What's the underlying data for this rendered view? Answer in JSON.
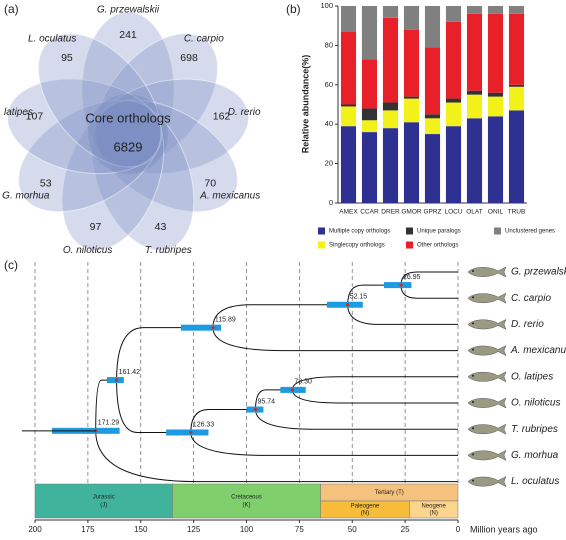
{
  "chart_data": [
    {
      "type": "venn",
      "panel": "(a)",
      "center_label": "Core orthologs",
      "center_value": 6829,
      "color": "#7d8fc3",
      "sets": [
        {
          "name": "G. przewalskii",
          "value": 241
        },
        {
          "name": "C. carpio",
          "value": 698
        },
        {
          "name": "D. rerio",
          "value": 162
        },
        {
          "name": "A. mexicanus",
          "value": 70
        },
        {
          "name": "T. rubripes",
          "value": 43
        },
        {
          "name": "O. niloticus",
          "value": 97
        },
        {
          "name": "G. morhua",
          "value": 53
        },
        {
          "name": "O. latipes",
          "value": 107
        },
        {
          "name": "L. oculatus",
          "value": 95
        }
      ]
    },
    {
      "type": "stacked_bar",
      "panel": "(b)",
      "y_label": "Relative abundance(%)",
      "categories": [
        "AMEX",
        "CCAR",
        "DRER",
        "GMOR",
        "GPRZ",
        "LOCU",
        "OLAT",
        "ONIL",
        "TRUB"
      ],
      "ylim": [
        0,
        100
      ],
      "yticks": [
        0,
        20,
        40,
        60,
        80,
        100
      ],
      "series": [
        {
          "name": "Multiple copy orthologs",
          "color": "#2e3192",
          "values": [
            39,
            36,
            38,
            41,
            35,
            39,
            43,
            44,
            47
          ]
        },
        {
          "name": "Singlecopy orthologs",
          "color": "#f2f21a",
          "values": [
            10,
            6,
            9,
            12,
            8,
            12,
            12,
            10,
            12
          ]
        },
        {
          "name": "Unique paralogs",
          "color": "#333333",
          "values": [
            1,
            6,
            4,
            1,
            2,
            2,
            2,
            2,
            1
          ]
        },
        {
          "name": "Other orthologs",
          "color": "#e8202a",
          "values": [
            37,
            25,
            43,
            34,
            34,
            39,
            39,
            40,
            36
          ]
        },
        {
          "name": "Unclustered genes",
          "color": "#808080",
          "values": [
            13,
            27,
            6,
            12,
            21,
            8,
            4,
            4,
            4
          ]
        }
      ]
    },
    {
      "type": "tree",
      "panel": "(c)",
      "x_label": "Million years ago",
      "xlim": [
        200,
        0
      ],
      "xticks": [
        200,
        175,
        150,
        125,
        100,
        75,
        50,
        25,
        0
      ],
      "grid": true,
      "ci_color": "#1e9be0",
      "tree": {
        "age": 171.29,
        "ci": [
          192,
          160
        ],
        "children": [
          {
            "age": 161.42,
            "ci": [
              166,
              158
            ],
            "children": [
              {
                "age": 115.89,
                "ci": [
                  131,
                  112
                ],
                "children": [
                  {
                    "age": 52.15,
                    "ci": [
                      62,
                      45
                    ],
                    "children": [
                      {
                        "age": 26.95,
                        "ci": [
                          35,
                          22
                        ],
                        "children": [
                          {
                            "name": "G. przewalskii"
                          },
                          {
                            "name": "C. carpio"
                          }
                        ]
                      },
                      {
                        "name": "D. rerio"
                      }
                    ]
                  },
                  {
                    "name": "A. mexicanus"
                  }
                ]
              },
              {
                "age": 126.33,
                "ci": [
                  138,
                  118
                ],
                "children": [
                  {
                    "age": 95.74,
                    "ci": [
                      100,
                      92
                    ],
                    "children": [
                      {
                        "age": 78.3,
                        "age_label": "78.30",
                        "ci": [
                          84,
                          72
                        ],
                        "children": [
                          {
                            "name": "O. latipes"
                          },
                          {
                            "name": "O. niloticus"
                          }
                        ]
                      },
                      {
                        "name": "T. rubripes"
                      }
                    ]
                  },
                  {
                    "name": "G. morhua"
                  }
                ]
              }
            ]
          },
          {
            "name": "L. oculatus"
          }
        ]
      },
      "periods": [
        {
          "name": "Jurassic",
          "abbr": "(J)",
          "start": 200,
          "end": 135,
          "color": "#3fb39b"
        },
        {
          "name": "Cretaceous",
          "abbr": "(K)",
          "start": 135,
          "end": 65,
          "color": "#7fcf6c"
        },
        {
          "name": "Tertiary (T)",
          "start": 65,
          "end": 0,
          "color": "#f4c27c"
        }
      ],
      "subperiods": [
        {
          "name": "Paleogene",
          "abbr": "(N)",
          "start": 65,
          "end": 23,
          "color": "#f7bd3a"
        },
        {
          "name": "Neogene",
          "abbr": "(N)",
          "start": 23,
          "end": 0,
          "color": "#fbd48e"
        }
      ]
    }
  ]
}
